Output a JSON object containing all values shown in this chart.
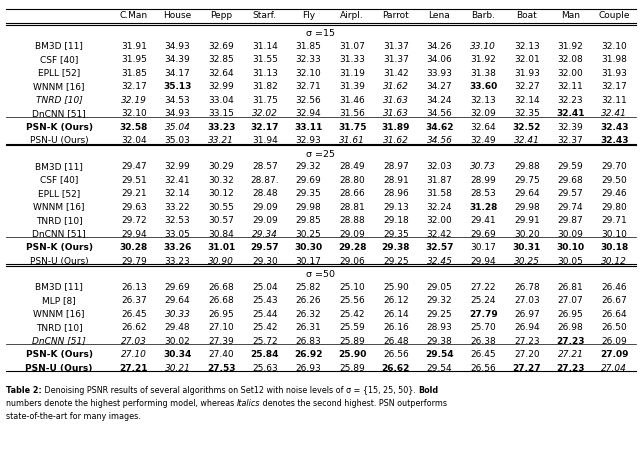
{
  "columns": [
    "C.Man",
    "House",
    "Pepp",
    "Starf.",
    "Fly",
    "Airpl.",
    "Parrot",
    "Lena",
    "Barb.",
    "Boat",
    "Man",
    "Couple"
  ],
  "sections": [
    {
      "sigma": "σ =15",
      "rows": [
        {
          "method": "BM3D [11]",
          "values": [
            "31.91",
            "34.93",
            "32.69",
            "31.14",
            "31.85",
            "31.07",
            "31.37",
            "34.26",
            "33.10",
            "32.13",
            "31.92",
            "32.10"
          ],
          "bold": [],
          "italic": [
            8
          ],
          "method_bold": false,
          "method_italic": false
        },
        {
          "method": "CSF [40]",
          "values": [
            "31.95",
            "34.39",
            "32.85",
            "31.55",
            "32.33",
            "31.33",
            "31.37",
            "34.06",
            "31.92",
            "32.01",
            "32.08",
            "31.98"
          ],
          "bold": [],
          "italic": [],
          "method_bold": false,
          "method_italic": false
        },
        {
          "method": "EPLL [52]",
          "values": [
            "31.85",
            "34.17",
            "32.64",
            "31.13",
            "32.10",
            "31.19",
            "31.42",
            "33.93",
            "31.38",
            "31.93",
            "32.00",
            "31.93"
          ],
          "bold": [],
          "italic": [],
          "method_bold": false,
          "method_italic": false
        },
        {
          "method": "WNNM [16]",
          "values": [
            "32.17",
            "35.13",
            "32.99",
            "31.82",
            "32.71",
            "31.39",
            "31.62",
            "34.27",
            "33.60",
            "32.27",
            "32.11",
            "32.17"
          ],
          "bold": [
            1,
            8
          ],
          "italic": [
            6
          ],
          "method_bold": false,
          "method_italic": false
        },
        {
          "method": "TNRD [10]",
          "values": [
            "32.19",
            "34.53",
            "33.04",
            "31.75",
            "32.56",
            "31.46",
            "31.63",
            "34.24",
            "32.13",
            "32.14",
            "32.23",
            "32.11"
          ],
          "bold": [],
          "italic": [
            0,
            6
          ],
          "method_bold": false,
          "method_italic": true
        },
        {
          "method": "DnCNN [51]",
          "values": [
            "32.10",
            "34.93",
            "33.15",
            "32.02",
            "32.94",
            "31.56",
            "31.63",
            "34.56",
            "32.09",
            "32.35",
            "32.41",
            "32.41"
          ],
          "bold": [
            10
          ],
          "italic": [
            3,
            6,
            11
          ],
          "method_bold": false,
          "method_italic": false
        },
        {
          "method": "PSN-K (Ours)",
          "values": [
            "32.58",
            "35.04",
            "33.23",
            "32.17",
            "33.11",
            "31.75",
            "31.89",
            "34.62",
            "32.64",
            "32.52",
            "32.39",
            "32.43"
          ],
          "bold": [
            0,
            2,
            3,
            4,
            5,
            6,
            7,
            9,
            11
          ],
          "italic": [
            1
          ],
          "method_bold": true,
          "method_italic": false
        },
        {
          "method": "PSN-U (Ours)",
          "values": [
            "32.04",
            "35.03",
            "33.21",
            "31.94",
            "32.93",
            "31.61",
            "31.62",
            "34.56",
            "32.49",
            "32.41",
            "32.37",
            "32.43"
          ],
          "bold": [
            11
          ],
          "italic": [
            2,
            5,
            6,
            7,
            9
          ],
          "method_bold": false,
          "method_italic": false
        }
      ]
    },
    {
      "sigma": "σ =25",
      "rows": [
        {
          "method": "BM3D [11]",
          "values": [
            "29.47",
            "32.99",
            "30.29",
            "28.57",
            "29.32",
            "28.49",
            "28.97",
            "32.03",
            "30.73",
            "29.88",
            "29.59",
            "29.70"
          ],
          "bold": [],
          "italic": [
            8
          ],
          "method_bold": false,
          "method_italic": false
        },
        {
          "method": "CSF [40]",
          "values": [
            "29.51",
            "32.41",
            "30.32",
            "28.87.",
            "29.69",
            "28.80",
            "28.91",
            "31.87",
            "28.99",
            "29.75",
            "29.68",
            "29.50"
          ],
          "bold": [],
          "italic": [],
          "method_bold": false,
          "method_italic": false
        },
        {
          "method": "EPLL [52]",
          "values": [
            "29.21",
            "32.14",
            "30.12",
            "28.48",
            "29.35",
            "28.66",
            "28.96",
            "31.58",
            "28.53",
            "29.64",
            "29.57",
            "29.46"
          ],
          "bold": [],
          "italic": [],
          "method_bold": false,
          "method_italic": false
        },
        {
          "method": "WNNM [16]",
          "values": [
            "29.63",
            "33.22",
            "30.55",
            "29.09",
            "29.98",
            "28.81",
            "29.13",
            "32.24",
            "31.28",
            "29.98",
            "29.74",
            "29.80"
          ],
          "bold": [
            8
          ],
          "italic": [],
          "method_bold": false,
          "method_italic": false
        },
        {
          "method": "TNRD [10]",
          "values": [
            "29.72",
            "32.53",
            "30.57",
            "29.09",
            "29.85",
            "28.88",
            "29.18",
            "32.00",
            "29.41",
            "29.91",
            "29.87",
            "29.71"
          ],
          "bold": [],
          "italic": [],
          "method_bold": false,
          "method_italic": false
        },
        {
          "method": "DnCNN [51]",
          "values": [
            "29.94",
            "33.05",
            "30.84",
            "29.34",
            "30.25",
            "29.09",
            "29.35",
            "32.42",
            "29.69",
            "30.20",
            "30.09",
            "30.10"
          ],
          "bold": [],
          "italic": [
            3
          ],
          "method_bold": false,
          "method_italic": false
        },
        {
          "method": "PSN-K (Ours)",
          "values": [
            "30.28",
            "33.26",
            "31.01",
            "29.57",
            "30.30",
            "29.28",
            "29.38",
            "32.57",
            "30.17",
            "30.31",
            "30.10",
            "30.18"
          ],
          "bold": [
            0,
            1,
            2,
            3,
            4,
            5,
            6,
            7,
            9,
            10,
            11
          ],
          "italic": [],
          "method_bold": true,
          "method_italic": false
        },
        {
          "method": "PSN-U (Ours)",
          "values": [
            "29.79",
            "33.23",
            "30.90",
            "29.30",
            "30.17",
            "29.06",
            "29.25",
            "32.45",
            "29.94",
            "30.25",
            "30.05",
            "30.12"
          ],
          "bold": [],
          "italic": [
            2,
            7,
            9,
            11
          ],
          "method_bold": false,
          "method_italic": false
        }
      ]
    },
    {
      "sigma": "σ =50",
      "rows": [
        {
          "method": "BM3D [11]",
          "values": [
            "26.13",
            "29.69",
            "26.68",
            "25.04",
            "25.82",
            "25.10",
            "25.90",
            "29.05",
            "27.22",
            "26.78",
            "26.81",
            "26.46"
          ],
          "bold": [],
          "italic": [],
          "method_bold": false,
          "method_italic": false
        },
        {
          "method": "MLP [8]",
          "values": [
            "26.37",
            "29.64",
            "26.68",
            "25.43",
            "26.26",
            "25.56",
            "26.12",
            "29.32",
            "25.24",
            "27.03",
            "27.07",
            "26.67"
          ],
          "bold": [],
          "italic": [],
          "method_bold": false,
          "method_italic": false
        },
        {
          "method": "WNNM [16]",
          "values": [
            "26.45",
            "30.33",
            "26.95",
            "25.44",
            "26.32",
            "25.42",
            "26.14",
            "29.25",
            "27.79",
            "26.97",
            "26.95",
            "26.64"
          ],
          "bold": [
            8
          ],
          "italic": [
            1
          ],
          "method_bold": false,
          "method_italic": false
        },
        {
          "method": "TNRD [10]",
          "values": [
            "26.62",
            "29.48",
            "27.10",
            "25.42",
            "26.31",
            "25.59",
            "26.16",
            "28.93",
            "25.70",
            "26.94",
            "26.98",
            "26.50"
          ],
          "bold": [],
          "italic": [],
          "method_bold": false,
          "method_italic": false
        },
        {
          "method": "DnCNN [51]",
          "values": [
            "27.03",
            "30.02",
            "27.39",
            "25.72",
            "26.83",
            "25.89",
            "26.48",
            "29.38",
            "26.38",
            "27.23",
            "27.23",
            "26.09"
          ],
          "bold": [
            10
          ],
          "italic": [
            0
          ],
          "method_bold": false,
          "method_italic": true
        },
        {
          "method": "PSN-K (Ours)",
          "values": [
            "27.10",
            "30.34",
            "27.40",
            "25.84",
            "26.92",
            "25.90",
            "26.56",
            "29.54",
            "26.45",
            "27.20",
            "27.21",
            "27.09"
          ],
          "bold": [
            1,
            3,
            4,
            5,
            7,
            11
          ],
          "italic": [
            0,
            10
          ],
          "method_bold": true,
          "method_italic": false
        },
        {
          "method": "PSN-U (Ours)",
          "values": [
            "27.21",
            "30.21",
            "27.53",
            "25.63",
            "26.93",
            "25.89",
            "26.62",
            "29.54",
            "26.56",
            "27.27",
            "27.23",
            "27.04"
          ],
          "bold": [
            0,
            2,
            6,
            9,
            10
          ],
          "italic": [
            1,
            11
          ],
          "method_bold": true,
          "method_italic": false
        }
      ]
    }
  ],
  "caption_parts": [
    {
      "text": "Table 2:",
      "bold": true,
      "italic": false
    },
    {
      "text": " Denoising PSNR results of several algorithms on Set12 with noise levels of σ = {15, 25, 50}. ",
      "bold": false,
      "italic": false
    },
    {
      "text": "Bold",
      "bold": true,
      "italic": false
    },
    {
      "text": "\nnumbers denote the highest performing model, whereas ",
      "bold": false,
      "italic": false
    },
    {
      "text": "Italics",
      "bold": false,
      "italic": true
    },
    {
      "text": " denotes the second highest. PSN outperforms\nstate-of-the-art for many images.",
      "bold": false,
      "italic": false
    }
  ]
}
